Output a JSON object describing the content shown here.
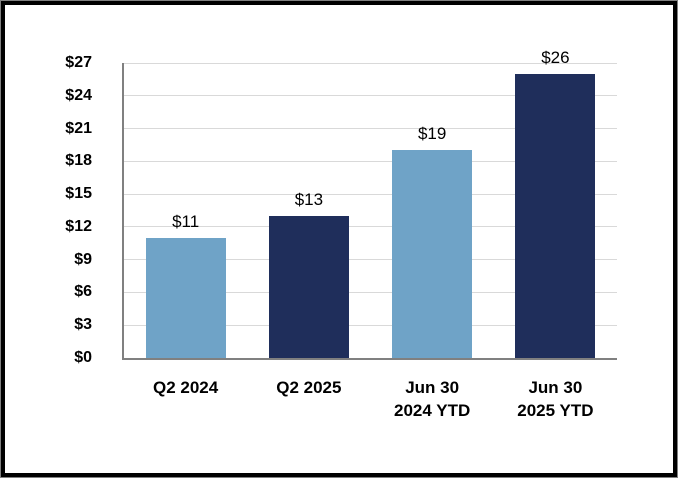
{
  "chart_data": {
    "type": "bar",
    "title": "",
    "xlabel": "",
    "ylabel": "",
    "categories": [
      "Q2 2024",
      "Q2 2025",
      "Jun 30 2024 YTD",
      "Jun 30 2025 YTD"
    ],
    "category_lines": [
      [
        "Q2 2024"
      ],
      [
        "Q2 2025"
      ],
      [
        "Jun 30",
        "2024 YTD"
      ],
      [
        "Jun 30",
        "2025 YTD"
      ]
    ],
    "values": [
      11,
      13,
      19,
      26
    ],
    "data_labels": [
      "$11",
      "$13",
      "$19",
      "$26"
    ],
    "bar_colors": [
      "#6FA3C7",
      "#1F2E5B",
      "#6FA3C7",
      "#1F2E5B"
    ],
    "y_tick_labels": [
      "$0",
      "$3",
      "$6",
      "$9",
      "$12",
      "$15",
      "$18",
      "$21",
      "$24",
      "$27"
    ],
    "y_tick_values": [
      0,
      3,
      6,
      9,
      12,
      15,
      18,
      21,
      24,
      27
    ],
    "ylim": [
      0,
      27
    ],
    "grid": true,
    "legend_position": "none",
    "colors": {
      "gridline": "#D9D9D9",
      "axis_line": "#808080",
      "text": "#000000",
      "background": "#FFFFFF",
      "frame_border": "#000000"
    }
  }
}
